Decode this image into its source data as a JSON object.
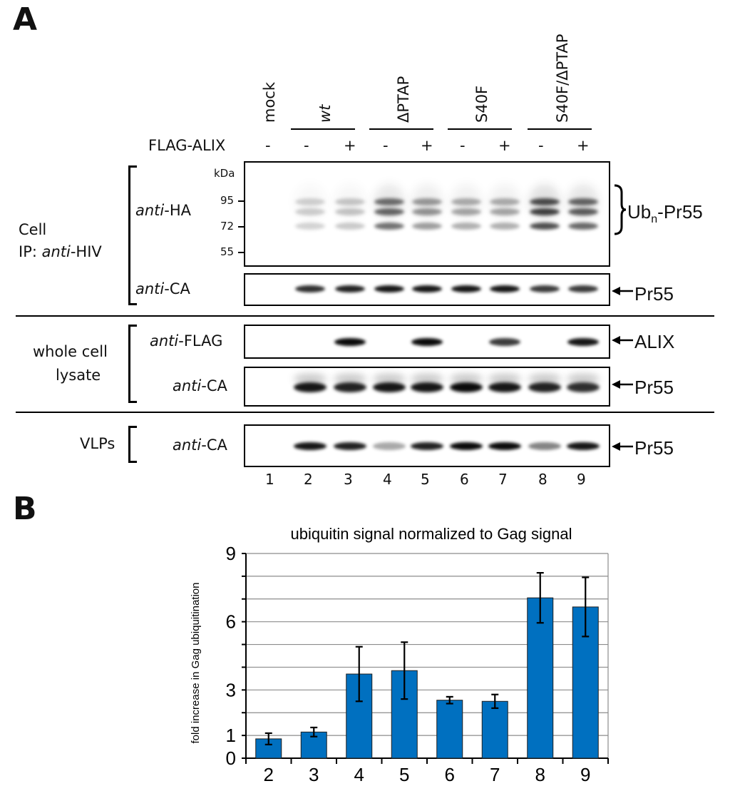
{
  "panel_a": {
    "letter": "A",
    "lanes": {
      "mock": "mock",
      "wt": "wt",
      "dptap": "ΔPTAP",
      "s40f": "S40F",
      "s40fdptap": "S40F/ΔPTAP"
    },
    "flag_alix_label": "FLAG-ALIX",
    "flag_alix_signs": [
      "-",
      "-",
      "+",
      "-",
      "+",
      "-",
      "+",
      "-",
      "+"
    ],
    "kda_label": "kDa",
    "mw_markers": [
      "95",
      "72",
      "55"
    ],
    "antibodies": {
      "anti_ha": [
        "anti",
        "-HA"
      ],
      "anti_ca": [
        "anti",
        "-CA"
      ],
      "anti_flag": [
        "anti",
        "-FLAG"
      ]
    },
    "groups": {
      "cell_line1": "Cell",
      "cell_line2_pre": "IP: ",
      "cell_line2_it": "anti",
      "cell_line2_post": "-HIV",
      "wcl_line1": "whole cell",
      "wcl_line2": "lysate",
      "vlps": "VLPs"
    },
    "right_labels": {
      "ub_main": "Ub",
      "ub_sub": "n",
      "ub_rest": "-Pr55",
      "pr55": "Pr55",
      "alix": "ALIX"
    },
    "lane_numbers": [
      "1",
      "2",
      "3",
      "4",
      "5",
      "6",
      "7",
      "8",
      "9"
    ]
  },
  "panel_b": {
    "letter": "B"
  },
  "chart_data": {
    "type": "bar",
    "title": "ubiquitin signal normalized to Gag signal",
    "ylabel": "fold increase in Gag ubiquitination",
    "xlabel": "",
    "categories": [
      "2",
      "3",
      "4",
      "5",
      "6",
      "7",
      "8",
      "9"
    ],
    "values": [
      0.85,
      1.15,
      3.7,
      3.85,
      2.55,
      2.5,
      7.05,
      6.65
    ],
    "errors": [
      0.25,
      0.2,
      1.2,
      1.25,
      0.15,
      0.3,
      1.1,
      1.3
    ],
    "ylim": [
      0,
      9
    ],
    "yticks": [
      0,
      1,
      3,
      6,
      9
    ],
    "bar_color": "#0070c0",
    "grid": true
  }
}
